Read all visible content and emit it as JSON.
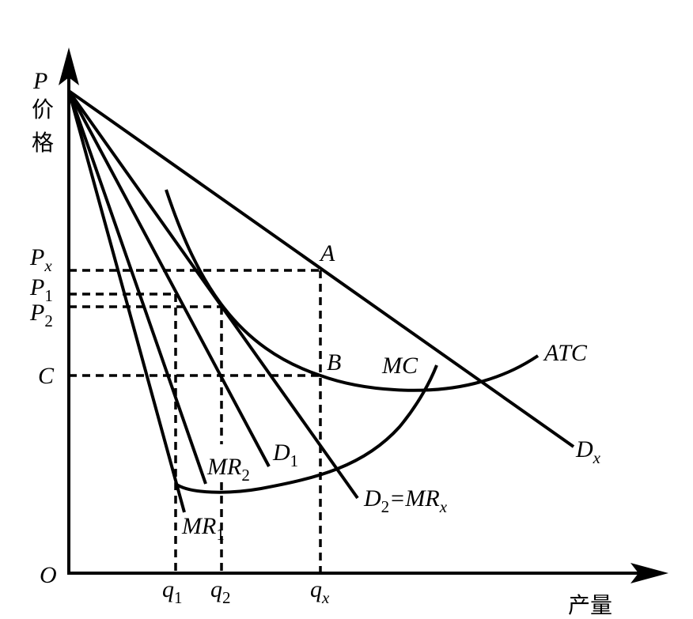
{
  "axes": {
    "y_symbol": "P",
    "y_label_1": "价",
    "y_label_2": "格",
    "x_label": "产量",
    "origin": "O"
  },
  "price_labels": {
    "px": [
      "P",
      "x"
    ],
    "p1": [
      "P",
      "1"
    ],
    "p2": [
      "P",
      "2"
    ],
    "c": [
      "C"
    ]
  },
  "quantity_labels": {
    "q1": [
      "q",
      "1"
    ],
    "q2": [
      "q",
      "2"
    ],
    "qx": [
      "q",
      "x"
    ]
  },
  "point_labels": {
    "a": "A",
    "b": "B"
  },
  "curve_labels": {
    "mc": [
      "MC"
    ],
    "atc": [
      "ATC"
    ],
    "dx": [
      "D",
      "x"
    ],
    "d1": [
      "D",
      "1"
    ],
    "d2": [
      "D",
      "2",
      "=MR",
      "x"
    ],
    "mr2": [
      "MR",
      "2"
    ],
    "mr1": [
      "MR",
      "1"
    ]
  }
}
